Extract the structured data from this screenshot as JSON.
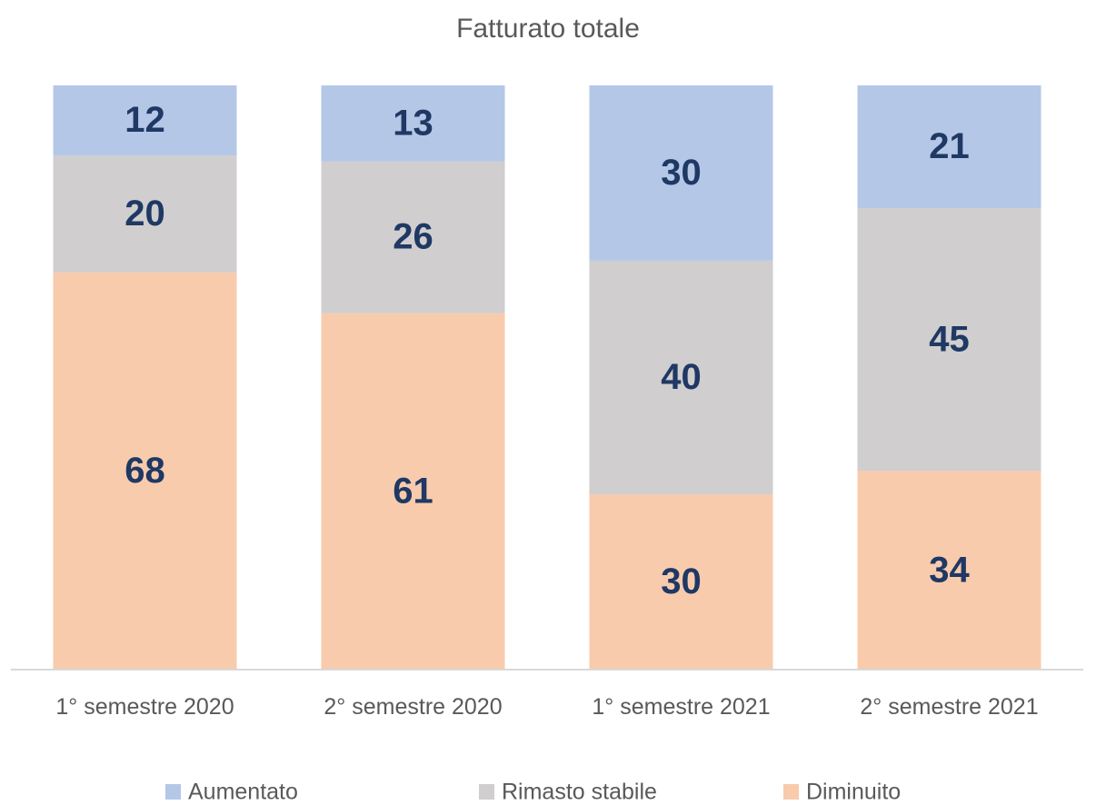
{
  "chart_data": {
    "type": "stacked_bar",
    "title": "Fatturato totale",
    "categories": [
      "1° semestre 2020",
      "2° semestre 2020",
      "1° semestre 2021",
      "2° semestre 2021"
    ],
    "series": [
      {
        "name": "Aumentato",
        "color": "#b4c7e7",
        "values": [
          12,
          13,
          30,
          21
        ]
      },
      {
        "name": "Rimasto stabile",
        "color": "#d0cece",
        "values": [
          20,
          26,
          40,
          45
        ]
      },
      {
        "name": "Diminuito",
        "color": "#f8cbad",
        "values": [
          68,
          61,
          30,
          34
        ]
      }
    ],
    "ylim": [
      0,
      100
    ],
    "legend": "bottom"
  }
}
